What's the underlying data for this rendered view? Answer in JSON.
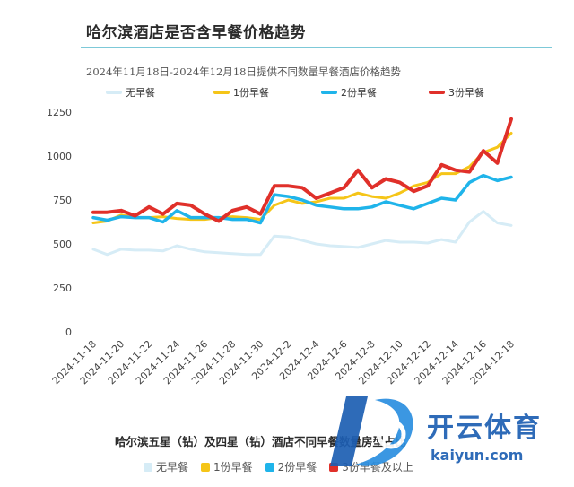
{
  "title": "哈尔滨酒店是否含早餐价格趋势",
  "colors": {
    "none": "#d6ecf6",
    "one": "#f5c518",
    "two": "#1fb4ea",
    "three": "#e0302a",
    "accent_rule": "#7dc9d8"
  },
  "bottom": {
    "title": "哈尔滨五星（钻）及四星（钻）酒店不同早餐数量房型占比",
    "legend": [
      "无早餐",
      "1份早餐",
      "2份早餐",
      "3份早餐及以上"
    ]
  },
  "watermark": {
    "brand": "开云体育",
    "url": "kaiyun.com"
  },
  "chart_data": {
    "type": "line",
    "title": "",
    "subtitle": "2024年11月18日-2024年12月18日提供不同数量早餐酒店价格趋势",
    "xlabel": "",
    "ylabel": "",
    "ylim": [
      0,
      1250
    ],
    "yticks": [
      0,
      250,
      500,
      750,
      1000,
      1250
    ],
    "grid": false,
    "legend_position": "top",
    "x": [
      "2024-11-18",
      "2024-11-19",
      "2024-11-20",
      "2024-11-21",
      "2024-11-22",
      "2024-11-23",
      "2024-11-24",
      "2024-11-25",
      "2024-11-26",
      "2024-11-27",
      "2024-11-28",
      "2024-11-29",
      "2024-11-30",
      "2024-12-1",
      "2024-12-2",
      "2024-12-3",
      "2024-12-4",
      "2024-12-5",
      "2024-12-6",
      "2024-12-7",
      "2024-12-8",
      "2024-12-9",
      "2024-12-10",
      "2024-12-11",
      "2024-12-12",
      "2024-12-13",
      "2024-12-14",
      "2024-12-15",
      "2024-12-16",
      "2024-12-17",
      "2024-12-18"
    ],
    "xtick_labels": [
      "2024-11-18",
      "2024-11-20",
      "2024-11-22",
      "2024-11-24",
      "2024-11-26",
      "2024-11-28",
      "2024-11-30",
      "2024-12-2",
      "2024-12-4",
      "2024-12-6",
      "2024-12-8",
      "2024-12-10",
      "2024-12-12",
      "2024-12-14",
      "2024-12-16",
      "2024-12-18"
    ],
    "series": [
      {
        "name": "无早餐",
        "color_key": "none",
        "values": [
          470,
          440,
          470,
          465,
          465,
          460,
          490,
          470,
          455,
          450,
          445,
          440,
          440,
          545,
          540,
          520,
          500,
          490,
          485,
          480,
          500,
          520,
          510,
          510,
          505,
          525,
          510,
          625,
          685,
          620,
          605
        ]
      },
      {
        "name": "1份早餐",
        "color_key": "one",
        "values": [
          620,
          630,
          665,
          650,
          650,
          655,
          645,
          640,
          640,
          650,
          655,
          650,
          640,
          720,
          750,
          730,
          740,
          760,
          760,
          790,
          770,
          760,
          790,
          830,
          850,
          900,
          900,
          940,
          1020,
          1050,
          1130
        ]
      },
      {
        "name": "2份早餐",
        "color_key": "two",
        "values": [
          650,
          635,
          655,
          650,
          650,
          625,
          690,
          650,
          650,
          650,
          640,
          640,
          620,
          780,
          770,
          750,
          720,
          710,
          700,
          700,
          710,
          740,
          720,
          700,
          730,
          760,
          750,
          850,
          890,
          860,
          880
        ]
      },
      {
        "name": "3份早餐",
        "color_key": "three",
        "values": [
          680,
          680,
          690,
          660,
          710,
          670,
          730,
          720,
          670,
          630,
          690,
          710,
          670,
          830,
          830,
          820,
          760,
          790,
          820,
          920,
          820,
          870,
          850,
          800,
          830,
          950,
          920,
          910,
          1030,
          960,
          1210
        ]
      }
    ]
  }
}
